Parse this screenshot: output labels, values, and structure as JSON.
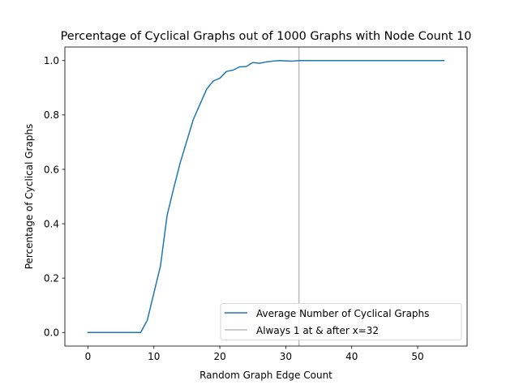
{
  "chart_data": {
    "type": "line",
    "title": "Percentage of Cyclical Graphs out of 1000 Graphs with Node Count 10",
    "xlabel": "Random Graph Edge Count",
    "ylabel": "Percentage of Cyclical Graphs",
    "xlim": [
      -3.5,
      57.5
    ],
    "ylim": [
      -0.05,
      1.05
    ],
    "xticks": [
      0,
      10,
      20,
      30,
      40,
      50
    ],
    "xtick_labels": [
      "0",
      "10",
      "20",
      "30",
      "40",
      "50"
    ],
    "yticks": [
      0.0,
      0.2,
      0.4,
      0.6,
      0.8,
      1.0
    ],
    "ytick_labels": [
      "0.0",
      "0.2",
      "0.4",
      "0.6",
      "0.8",
      "1.0"
    ],
    "grid": false,
    "legend_position": "lower-right",
    "series": [
      {
        "name": "Average Number of Cyclical Graphs",
        "color": "#1f77b4",
        "x": [
          0,
          1,
          2,
          3,
          4,
          5,
          6,
          7,
          8,
          9,
          10,
          11,
          12,
          13,
          14,
          15,
          16,
          17,
          18,
          19,
          20,
          21,
          22,
          23,
          24,
          25,
          26,
          27,
          28,
          29,
          30,
          31,
          32,
          33,
          34,
          35,
          36,
          37,
          38,
          39,
          40,
          41,
          42,
          43,
          44,
          45,
          46,
          47,
          48,
          49,
          50,
          51,
          52,
          53,
          54
        ],
        "values": [
          0,
          0,
          0,
          0,
          0,
          0,
          0,
          0,
          0,
          0.045,
          0.145,
          0.245,
          0.43,
          0.53,
          0.625,
          0.705,
          0.785,
          0.84,
          0.895,
          0.925,
          0.935,
          0.96,
          0.965,
          0.977,
          0.978,
          0.993,
          0.99,
          0.995,
          0.998,
          1.0,
          0.999,
          0.998,
          1.0,
          1.0,
          1.0,
          1.0,
          1.0,
          1.0,
          1.0,
          1.0,
          1.0,
          1.0,
          1.0,
          1.0,
          1.0,
          1.0,
          1.0,
          1.0,
          1.0,
          1.0,
          1.0,
          1.0,
          1.0,
          1.0,
          1.0
        ]
      }
    ],
    "reference_line": {
      "name": "Always 1 at & after x=32",
      "orientation": "vertical",
      "x": 32,
      "color": "#bbbbbb"
    }
  }
}
